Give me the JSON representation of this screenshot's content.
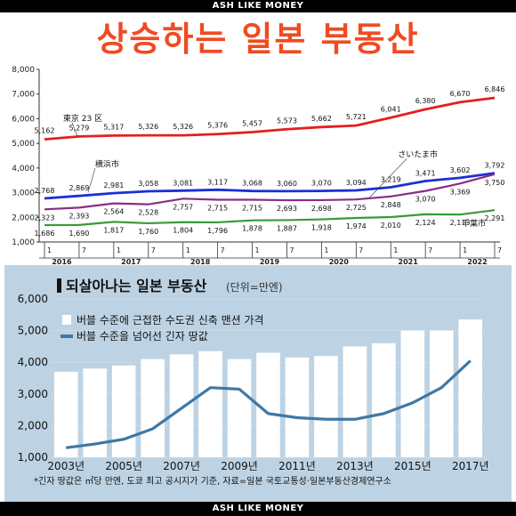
{
  "top_band": "ASH LIKE MONEY",
  "bottom_band": "ASH LIKE MONEY",
  "headline": "상승하는 일본 부동산",
  "colors": {
    "headline": "#ef4b23",
    "tokyo": "#e41f1f",
    "saitama": "#8a2d86",
    "yokohama": "#1b2fd6",
    "chiba": "#3a9a3a",
    "panel": "#bdd3e4",
    "bars": "#ffffff",
    "land": "#3f78a4"
  },
  "chart_data": [
    {
      "type": "line",
      "ylim": [
        1000,
        8000
      ],
      "ytick_labels": [
        "1,000",
        "2,000",
        "3,000",
        "4,000",
        "5,000",
        "6,000",
        "7,000",
        "8,000"
      ],
      "x_periods": [
        {
          "label": "1",
          "year": "2016"
        },
        {
          "label": "7",
          "year": ""
        },
        {
          "label": "1",
          "year": "2017"
        },
        {
          "label": "7",
          "year": ""
        },
        {
          "label": "1",
          "year": "2018"
        },
        {
          "label": "7",
          "year": ""
        },
        {
          "label": "1",
          "year": "2019"
        },
        {
          "label": "7",
          "year": ""
        },
        {
          "label": "1",
          "year": "2020"
        },
        {
          "label": "7",
          "year": ""
        },
        {
          "label": "1",
          "year": "2021"
        },
        {
          "label": "7",
          "year": ""
        },
        {
          "label": "1",
          "year": "2022"
        },
        {
          "label": "7",
          "year": ""
        }
      ],
      "series": [
        {
          "name": "東京 23 区",
          "key": "tokyo",
          "values": [
            5162,
            5279,
            5317,
            5326,
            5326,
            5376,
            5457,
            5573,
            5662,
            5721,
            6041,
            6380,
            6670,
            6846
          ],
          "labels": [
            "5,162",
            "5,279",
            "5,317",
            "5,326",
            "5,326",
            "5,376",
            "5,457",
            "5,573",
            "5,662",
            "5,721",
            "6,041",
            "6,380",
            "6,670",
            "6,846"
          ]
        },
        {
          "name": "横浜市",
          "key": "yokohama",
          "values": [
            2768,
            2869,
            2981,
            3058,
            3081,
            3117,
            3068,
            3060,
            3070,
            3094,
            3219,
            3471,
            3602,
            3792
          ],
          "labels": [
            "2,768",
            "2,869",
            "2,981",
            "3,058",
            "3,081",
            "3,117",
            "3,068",
            "3,060",
            "3,070",
            "3,094",
            "3,219",
            "3,471",
            "3,602",
            "3,792"
          ]
        },
        {
          "name": "さいたま市",
          "key": "saitama",
          "values": [
            2323,
            2393,
            2564,
            2528,
            2757,
            2715,
            2715,
            2693,
            2698,
            2725,
            2848,
            3070,
            3369,
            3750
          ],
          "labels": [
            "2,323",
            "2,393",
            "2,564",
            "2,528",
            "2,757",
            "2,715",
            "2,715",
            "2,693",
            "2,698",
            "2,725",
            "2,848",
            "3,070",
            "3,369",
            "3,750"
          ]
        },
        {
          "name": "千葉市",
          "key": "chiba",
          "values": [
            1686,
            1690,
            1817,
            1760,
            1804,
            1796,
            1878,
            1887,
            1918,
            1974,
            2010,
            2124,
            2113,
            2291
          ],
          "labels": [
            "1,686",
            "1,690",
            "1,817",
            "1,760",
            "1,804",
            "1,796",
            "1,878",
            "1,887",
            "1,918",
            "1,974",
            "2,010",
            "2,124",
            "2,113",
            "2,291"
          ]
        }
      ]
    },
    {
      "type": "bar+line",
      "title": "되살아나는 일본 부동산",
      "unit": "(단위=만엔)",
      "ylim": [
        1000,
        6000
      ],
      "ytick_labels": [
        "1,000",
        "2,000",
        "3,000",
        "4,000",
        "5,000",
        "6,000"
      ],
      "categories": [
        "2003",
        "2004",
        "2005",
        "2006",
        "2007",
        "2008",
        "2009",
        "2010",
        "2011",
        "2012",
        "2013",
        "2014",
        "2015",
        "2016",
        "2017"
      ],
      "xtick_labels": [
        "2003년",
        "2005년",
        "2007년",
        "2009년",
        "2011년",
        "2013년",
        "2015년",
        "2017년"
      ],
      "series": [
        {
          "name": "버블 수준에 근접한 수도권 신축 맨션 가격",
          "type": "bar",
          "values": [
            3700,
            3800,
            3900,
            4100,
            4250,
            4350,
            4100,
            4300,
            4150,
            4200,
            4500,
            4600,
            5000,
            5000,
            5350
          ]
        },
        {
          "name": "버블 수준을 넘어선 긴자 땅값",
          "type": "line",
          "values": [
            1300,
            1420,
            1570,
            1900,
            2550,
            3200,
            3150,
            2380,
            2250,
            2200,
            2200,
            2380,
            2720,
            3200,
            4050
          ]
        }
      ],
      "footnote": "*긴자 땅값은 ㎡당 만엔, 도쿄 최고 공시지가 기준, 자료=일본 국토교통성·일본부동산경제연구소"
    }
  ]
}
